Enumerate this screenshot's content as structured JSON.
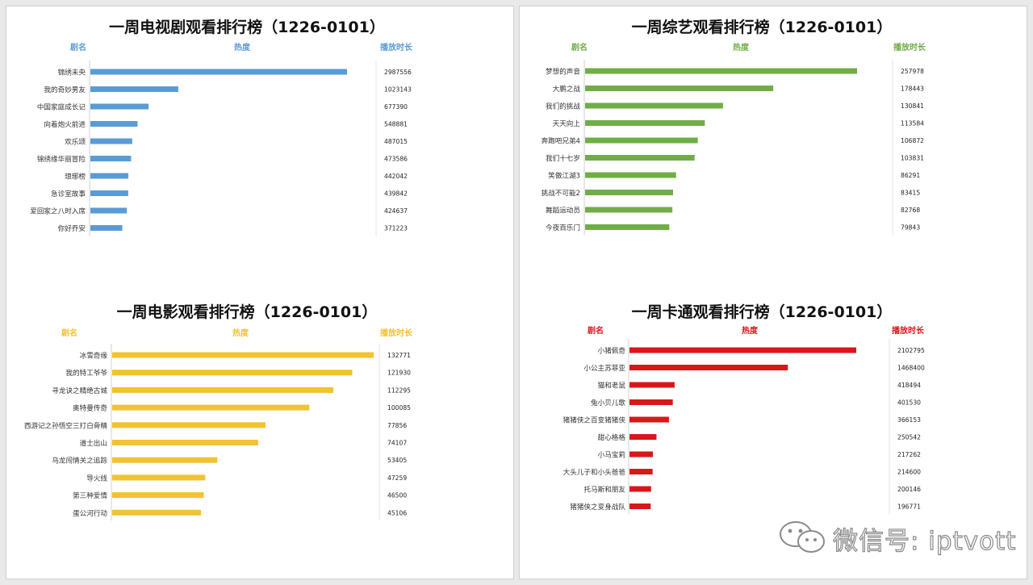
{
  "chart_data": [
    {
      "type": "bar",
      "orientation": "horizontal",
      "title": "一周电视剧观看排行榜（1226-0101）",
      "header_name": "剧名",
      "header_value": "热度",
      "header_duration": "播放时长",
      "color": "#5b9bd5",
      "categories": [
        "锦绣未央",
        "我的奇妙男友",
        "中国家庭成长记",
        "向着炮火前进",
        "欢乐颂",
        "锦绣缘华丽冒险",
        "琅琊榜",
        "急诊室故事",
        "爱回家之八时入席",
        "你好乔安"
      ],
      "values": [
        2987556,
        1023143,
        677390,
        548881,
        487015,
        473586,
        442042,
        439842,
        424637,
        371223
      ]
    },
    {
      "type": "bar",
      "orientation": "horizontal",
      "title": "一周综艺观看排行榜（1226-0101）",
      "header_name": "剧名",
      "header_value": "热度",
      "header_duration": "播放时长",
      "color": "#70ad47",
      "categories": [
        "梦想的声音",
        "大鹏之战",
        "我们的挑战",
        "天天向上",
        "奔跑吧兄弟4",
        "我们十七岁",
        "笑傲江湖3",
        "挑战不可能2",
        "舞蹈运动员",
        "今夜百乐门"
      ],
      "values": [
        257978,
        178443,
        130841,
        113584,
        106872,
        103831,
        86291,
        83415,
        82768,
        79843
      ]
    },
    {
      "type": "bar",
      "orientation": "horizontal",
      "title": "一周电影观看排行榜（1226-0101）",
      "header_name": "剧名",
      "header_value": "热度",
      "header_duration": "播放时长",
      "color": "#f1c232",
      "categories": [
        "冰雪奇缘",
        "我的特工爷爷",
        "寻龙诀之精绝古城",
        "奥特曼传奇",
        "西游记之孙悟空三打白骨精",
        "道士出山",
        "乌龙闯情关之追踪",
        "导火线",
        "第三种爱情",
        "蛋公河行动"
      ],
      "values": [
        132771,
        121930,
        112295,
        100085,
        77856,
        74107,
        53405,
        47259,
        46500,
        45106
      ]
    },
    {
      "type": "bar",
      "orientation": "horizontal",
      "title": "一周卡通观看排行榜（1226-0101）",
      "header_name": "剧名",
      "header_value": "热度",
      "header_duration": "播放时长",
      "color": "#d9171b",
      "categories": [
        "小猪佩奇",
        "小公主苏菲亚",
        "猫和老鼠",
        "兔小贝儿歌",
        "猪猪侠之百变猪猪侠",
        "甜心格格",
        "小马宝莉",
        "大头儿子和小头爸爸",
        "托马斯和朋友",
        "猪猪侠之变身战队"
      ],
      "values": [
        2102795,
        1468400,
        418494,
        401530,
        366153,
        250542,
        217262,
        214600,
        200146,
        196771
      ]
    }
  ],
  "watermark": {
    "text": "微信号: iptvott",
    "icon": "wechat-icon"
  }
}
